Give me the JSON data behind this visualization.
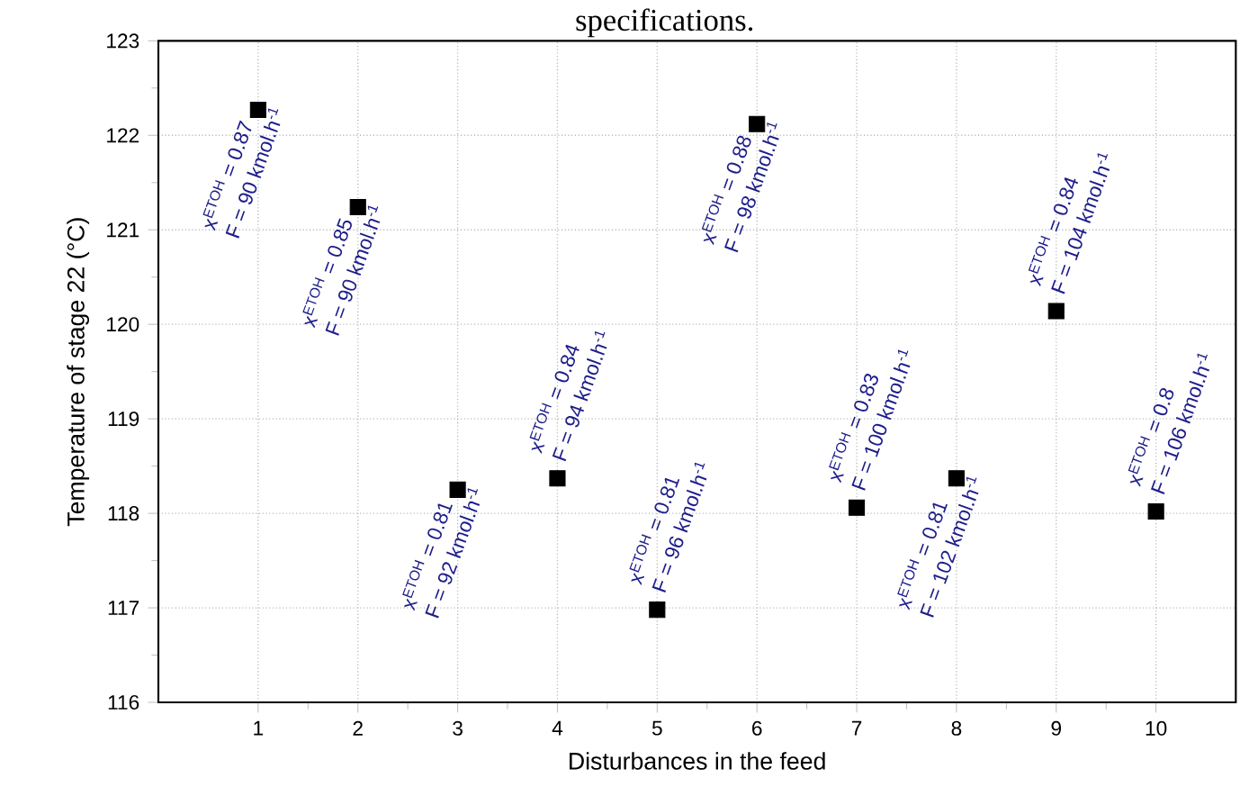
{
  "chart_data": {
    "type": "scatter",
    "title": "specifications.",
    "xlabel": "Disturbances in the feed",
    "ylabel": "Temperature of stage 22 (°C)",
    "x": [
      1,
      2,
      3,
      4,
      5,
      6,
      7,
      8,
      9,
      10
    ],
    "series": [
      {
        "color": "#000000",
        "values": [
          122.27,
          121.24,
          118.25,
          118.37,
          116.98,
          122.12,
          118.06,
          118.37,
          120.14,
          118.02
        ]
      }
    ],
    "xlim": [
      0,
      10.8
    ],
    "xticks": [
      1,
      2,
      3,
      4,
      5,
      6,
      7,
      8,
      9,
      10
    ],
    "ylim": [
      116,
      123
    ],
    "yticks": [
      116,
      117,
      118,
      119,
      120,
      121,
      122,
      123
    ],
    "grid": true,
    "marker": "square",
    "annotations": [
      {
        "text": "x$^{ETOH}$ = 0.87",
        "x": 1,
        "y": 122.27
      },
      {
        "text": "F = 90 kmol.h$^{-1}$",
        "x": 1,
        "y": 122.27
      },
      {
        "text": "x$^{ETOH}$ = 0.85",
        "x": 2,
        "y": 121.24
      },
      {
        "text": "F = 90 kmol.h$^{-1}$",
        "x": 2,
        "y": 121.24
      },
      {
        "text": "x$^{ETOH}$ = 0.81",
        "x": 3,
        "y": 118.25
      },
      {
        "text": "F = 92 kmol.h$^{-1}$",
        "x": 3,
        "y": 118.25
      },
      {
        "text": "x$^{ETOH}$ = 0.84",
        "x": 4,
        "y": 118.37
      },
      {
        "text": "F = 94 kmol.h$^{-1}$",
        "x": 4,
        "y": 118.37
      },
      {
        "text": "x$^{ETOH}$ = 0.81",
        "x": 5,
        "y": 116.98
      },
      {
        "text": "F = 96 kmol.h$^{-1}$",
        "x": 5,
        "y": 116.98
      },
      {
        "text": "x$^{ETOH}$ = 0.88",
        "x": 6,
        "y": 122.12
      },
      {
        "text": "F = 98 kmol.h$^{-1}$",
        "x": 6,
        "y": 122.12
      },
      {
        "text": "x$^{ETOH}$ = 0.83",
        "x": 7,
        "y": 118.06
      },
      {
        "text": "F = 100 kmol.h$^{-1}$",
        "x": 7,
        "y": 118.06
      },
      {
        "text": "x$^{ETOH}$ = 0.81",
        "x": 8,
        "y": 118.37
      },
      {
        "text": "F = 102 kmol.h$^{-1}$",
        "x": 8,
        "y": 118.37
      },
      {
        "text": "x$^{ETOH}$ = 0.84",
        "x": 9,
        "y": 120.14
      },
      {
        "text": "F = 104 kmol.h$^{-1}$",
        "x": 9,
        "y": 120.14
      },
      {
        "text": "x$^{ETOH}$ = 0.8",
        "x": 10,
        "y": 118.02
      },
      {
        "text": "F = 106 kmol.h$^{-1}$",
        "x": 10,
        "y": 118.02
      }
    ]
  }
}
